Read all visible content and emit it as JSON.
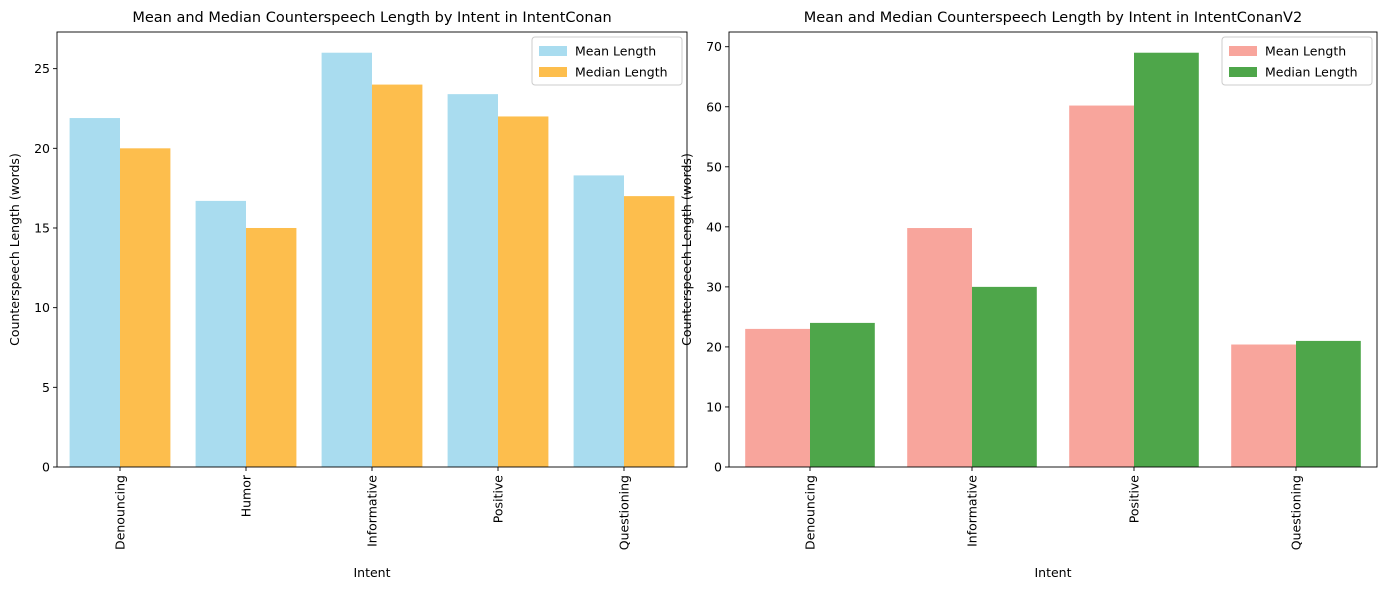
{
  "chart_data": [
    {
      "type": "bar",
      "title": "Mean and Median Counterspeech Length by Intent in IntentConan",
      "xlabel": "Intent",
      "ylabel": "Counterspeech Length (words)",
      "categories": [
        "Denouncing",
        "Humor",
        "Informative",
        "Positive",
        "Questioning"
      ],
      "series": [
        {
          "name": "Mean Length",
          "values": [
            21.9,
            16.7,
            26.0,
            23.4,
            18.3
          ],
          "color": "#a9dcef"
        },
        {
          "name": "Median Length",
          "values": [
            20,
            15,
            24,
            22,
            17
          ],
          "color": "#fdbe4d"
        }
      ],
      "ylim": [
        0,
        27.3
      ],
      "yticks": [
        0,
        5,
        10,
        15,
        20,
        25
      ],
      "legend": "top-right",
      "grid": false
    },
    {
      "type": "bar",
      "title": "Mean and Median Counterspeech Length by Intent in IntentConanV2",
      "xlabel": "Intent",
      "ylabel": "Counterspeech Length (words)",
      "categories": [
        "Denouncing",
        "Informative",
        "Positive",
        "Questioning"
      ],
      "series": [
        {
          "name": "Mean Length",
          "values": [
            23.0,
            39.8,
            60.2,
            20.4
          ],
          "color": "#f8a59c"
        },
        {
          "name": "Median Length",
          "values": [
            24,
            30,
            69,
            21
          ],
          "color": "#4ea64a"
        }
      ],
      "ylim": [
        0,
        72.45
      ],
      "yticks": [
        0,
        10,
        20,
        30,
        40,
        50,
        60,
        70
      ],
      "legend": "top-right",
      "grid": false
    }
  ]
}
